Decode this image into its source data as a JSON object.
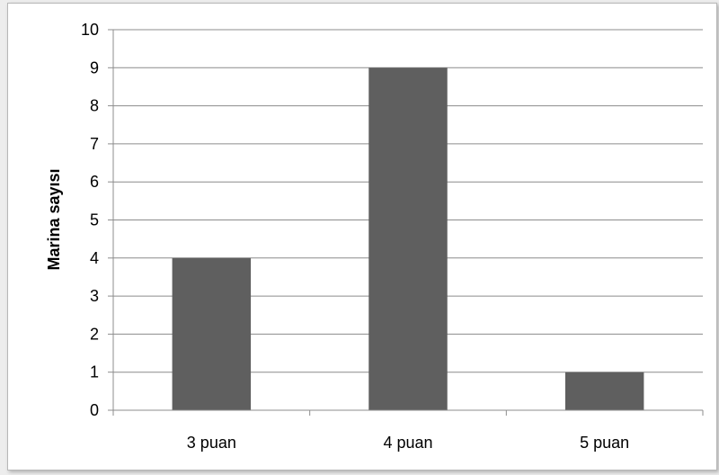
{
  "chart_data": {
    "type": "bar",
    "title": "",
    "xlabel": "",
    "ylabel": "Marina sayısı",
    "categories": [
      "3 puan",
      "4 puan",
      "5 puan"
    ],
    "values": [
      4,
      9,
      1
    ],
    "ylim": [
      0,
      10
    ],
    "yticks": [
      0,
      1,
      2,
      3,
      4,
      5,
      6,
      7,
      8,
      9,
      10
    ],
    "grid": true,
    "legend": "none",
    "bar_color": "#5f5f5f",
    "grid_color": "#8c8c8c"
  }
}
